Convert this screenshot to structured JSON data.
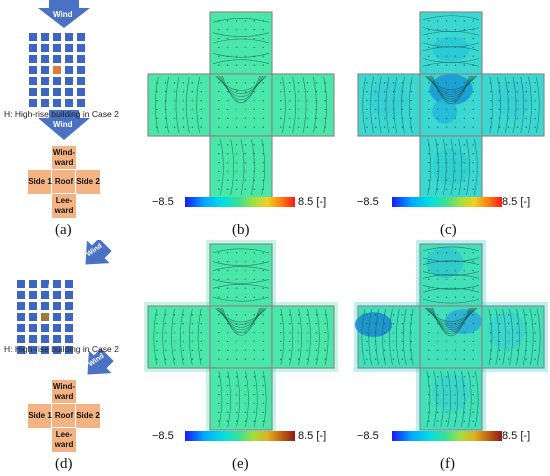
{
  "legend": {
    "wind_label": "Wind",
    "highrise_marker": "H",
    "caption": "H: High-rise building in Case 2"
  },
  "net_labels": {
    "windward": "Wind-\nward",
    "side1": "Side 1",
    "roof": "Roof",
    "side2": "Side 2",
    "leeward": "Lee-\nward"
  },
  "panels": [
    "(a)",
    "(b)",
    "(c)",
    "(d)",
    "(e)",
    "(f)"
  ],
  "colorbar": {
    "min_label": "−8.5",
    "max_label": "8.5 [-]",
    "colors": [
      "#1a1aff",
      "#00aaff",
      "#00e0e0",
      "#40e090",
      "#a0e040",
      "#f0d020",
      "#ff7a10",
      "#ff1a1a"
    ]
  },
  "colors": {
    "wind_arrow": "#4a72c4",
    "block": "#3d66c2",
    "highrise_case2": "#e07a3a",
    "highrise_case2_oblique": "#9b7a3a",
    "net_face": "#f4b383",
    "map_green": "#49e8a8",
    "map_cyan": "#3ad8d0"
  }
}
